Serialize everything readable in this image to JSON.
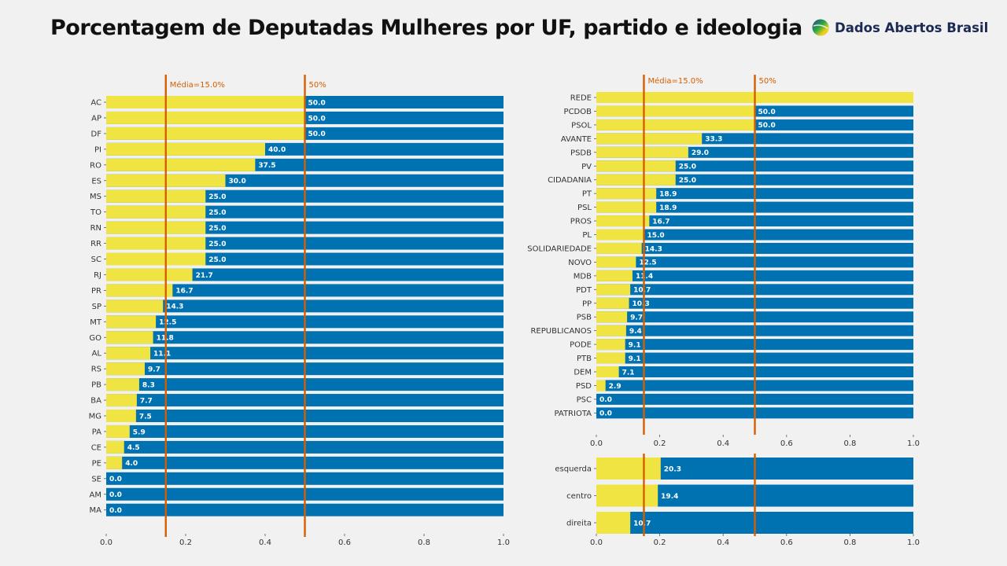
{
  "title": "Porcentagem de Deputadas Mulheres por UF, partido e ideologia",
  "brand": {
    "name": "Dados Abertos Brasil",
    "icon": "brazil-flag-circle-icon",
    "colors": {
      "green": "#2aa845",
      "yellow": "#f2d21b",
      "blue": "#2b3f8f"
    }
  },
  "colors": {
    "female": "#f0e442",
    "male": "#0072b2",
    "reference_line": "#d55e00",
    "reference_text": "#d55e00",
    "value_label": "#ffffff",
    "axis_text": "#333333"
  },
  "chart_data": [
    {
      "type": "bar",
      "orientation": "horizontal",
      "stacked": true,
      "id": "uf",
      "categories": [
        "AC",
        "AP",
        "DF",
        "PI",
        "RO",
        "ES",
        "MS",
        "TO",
        "RN",
        "RR",
        "SC",
        "RJ",
        "PR",
        "SP",
        "MT",
        "GO",
        "AL",
        "RS",
        "PB",
        "BA",
        "MG",
        "PA",
        "CE",
        "PE",
        "SE",
        "AM",
        "MA"
      ],
      "values": [
        0.5,
        0.5,
        0.5,
        0.4,
        0.375,
        0.3,
        0.25,
        0.25,
        0.25,
        0.25,
        0.25,
        0.217,
        0.167,
        0.143,
        0.125,
        0.118,
        0.111,
        0.097,
        0.083,
        0.077,
        0.075,
        0.059,
        0.045,
        0.04,
        0.0,
        0.0,
        0.0
      ],
      "value_labels": [
        "50.0",
        "50.0",
        "50.0",
        "40.0",
        "37.5",
        "30.0",
        "25.0",
        "25.0",
        "25.0",
        "25.0",
        "25.0",
        "21.7",
        "16.7",
        "14.3",
        "12.5",
        "11.8",
        "11.1",
        "9.7",
        "8.3",
        "7.7",
        "7.5",
        "5.9",
        "4.5",
        "4.0",
        "0.0",
        "0.0",
        "0.0"
      ],
      "xlim": [
        0,
        1
      ],
      "xticks": [
        "0.0",
        "0.2",
        "0.4",
        "0.6",
        "0.8",
        "1.0"
      ],
      "reference_lines": [
        {
          "value": 0.15,
          "label": "Média=15.0%"
        },
        {
          "value": 0.5,
          "label": "50%"
        }
      ]
    },
    {
      "type": "bar",
      "orientation": "horizontal",
      "stacked": true,
      "id": "partido",
      "categories": [
        "REDE",
        "PCDOB",
        "PSOL",
        "AVANTE",
        "PSDB",
        "PV",
        "CIDADANIA",
        "PT",
        "PSL",
        "PROS",
        "PL",
        "SOLIDARIEDADE",
        "NOVO",
        "MDB",
        "PDT",
        "PP",
        "PSB",
        "REPUBLICANOS",
        "PODE",
        "PTB",
        "DEM",
        "PSD",
        "PSC",
        "PATRIOTA"
      ],
      "values": [
        1.0,
        0.5,
        0.5,
        0.333,
        0.29,
        0.25,
        0.25,
        0.189,
        0.189,
        0.167,
        0.15,
        0.143,
        0.125,
        0.114,
        0.107,
        0.103,
        0.097,
        0.094,
        0.091,
        0.091,
        0.071,
        0.029,
        0.0,
        0.0
      ],
      "value_labels": [
        "",
        "50.0",
        "50.0",
        "33.3",
        "29.0",
        "25.0",
        "25.0",
        "18.9",
        "18.9",
        "16.7",
        "15.0",
        "14.3",
        "12.5",
        "11.4",
        "10.7",
        "10.3",
        "9.7",
        "9.4",
        "9.1",
        "9.1",
        "7.1",
        "2.9",
        "0.0",
        "0.0"
      ],
      "xlim": [
        0,
        1
      ],
      "xticks": [
        "0.0",
        "0.2",
        "0.4",
        "0.6",
        "0.8",
        "1.0"
      ],
      "reference_lines": [
        {
          "value": 0.15,
          "label": "Média=15.0%"
        },
        {
          "value": 0.5,
          "label": "50%"
        }
      ]
    },
    {
      "type": "bar",
      "orientation": "horizontal",
      "stacked": true,
      "id": "ideologia",
      "categories": [
        "esquerda",
        "centro",
        "direita"
      ],
      "values": [
        0.203,
        0.194,
        0.107
      ],
      "value_labels": [
        "20.3",
        "19.4",
        "10.7"
      ],
      "xlim": [
        0,
        1
      ],
      "xticks": [
        "0.0",
        "0.2",
        "0.4",
        "0.6",
        "0.8",
        "1.0"
      ],
      "reference_lines": [
        {
          "value": 0.15,
          "label": ""
        },
        {
          "value": 0.5,
          "label": ""
        }
      ]
    }
  ]
}
